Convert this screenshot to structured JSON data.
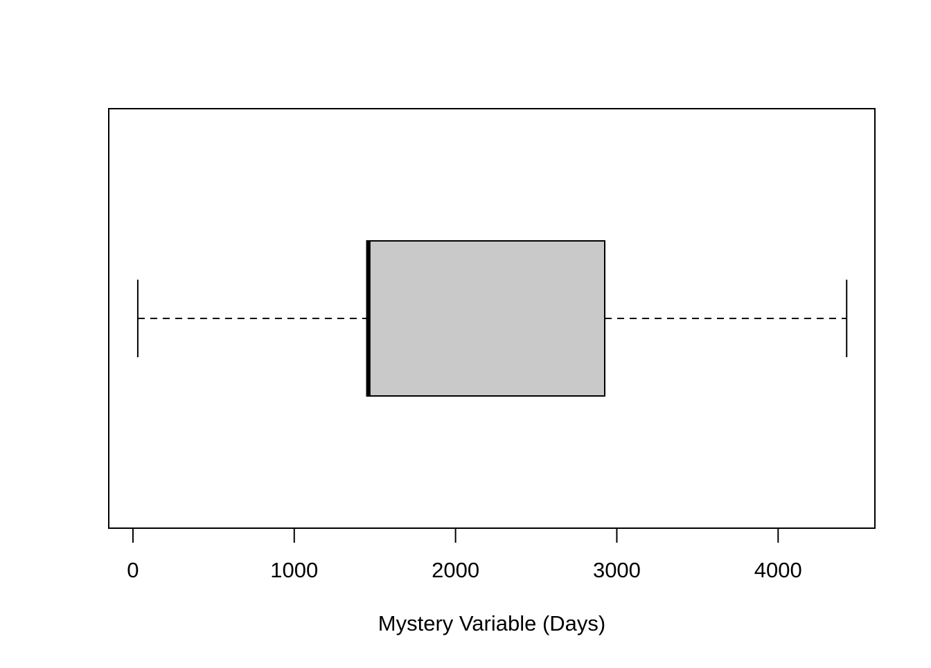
{
  "chart_data": {
    "type": "boxplot",
    "orientation": "horizontal",
    "title": "",
    "xlabel": "Mystery Variable (Days)",
    "ylabel": "",
    "xlim": [
      -150,
      4600
    ],
    "x_ticks": [
      0,
      1000,
      2000,
      3000,
      4000
    ],
    "x_tick_labels": [
      "0",
      "1000",
      "2000",
      "3000",
      "4000"
    ],
    "grid": false,
    "box": {
      "whisker_low": 30,
      "q1": 1450,
      "median": 1460,
      "q3": 2925,
      "whisker_high": 4425
    },
    "colors": {
      "box_fill": "#c9c9c9",
      "stroke": "#000000",
      "background": "#ffffff"
    }
  }
}
